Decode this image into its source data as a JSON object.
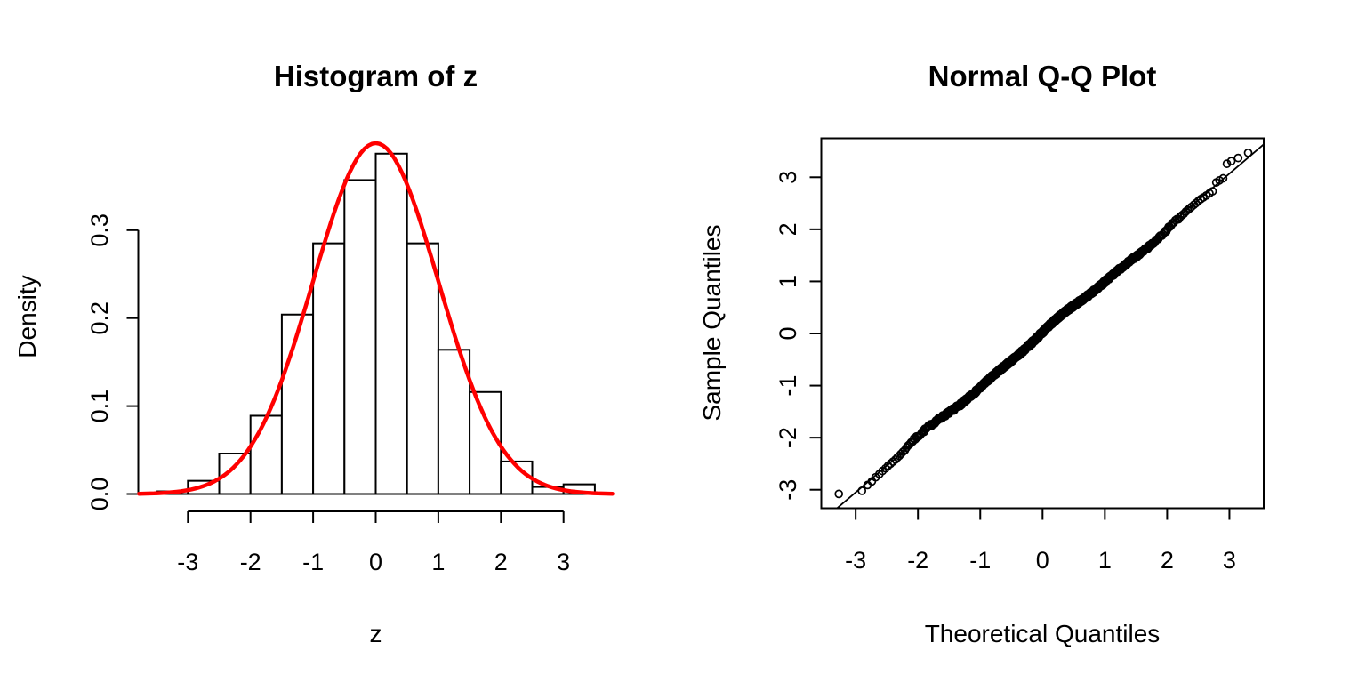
{
  "page": {
    "background": "#ffffff",
    "text_color": "#000000"
  },
  "chart_data": [
    {
      "id": "histogram-of-z",
      "type": "bar",
      "subtype": "histogram-with-density-curve",
      "title": "Histogram of z",
      "xlabel": "z",
      "ylabel": "Density",
      "x_ticks": [
        -3,
        -2,
        -1,
        0,
        1,
        2,
        3
      ],
      "x_tick_labels": [
        "-3",
        "-2",
        "-1",
        "0",
        "1",
        "2",
        "3"
      ],
      "y_ticks": [
        0,
        0.1,
        0.2,
        0.3
      ],
      "y_tick_labels": [
        "0.0",
        "0.1",
        "0.2",
        "0.3"
      ],
      "xlim": [
        -3.78,
        3.78
      ],
      "ylim": [
        0,
        0.4
      ],
      "grid": false,
      "bin_start": -3.5,
      "bin_width": 0.5,
      "bin_edges": [
        -3.5,
        -3,
        -2.5,
        -2,
        -1.5,
        -1,
        -0.5,
        0,
        0.5,
        1,
        1.5,
        2,
        2.5,
        3,
        3.5
      ],
      "densities": [
        0.003,
        0.015,
        0.046,
        0.089,
        0.204,
        0.285,
        0.357,
        0.387,
        0.285,
        0.164,
        0.116,
        0.037,
        0.008,
        0.011
      ],
      "bar_fill": "#ffffff",
      "bar_stroke": "#000000",
      "overlay_curve": {
        "name": "standard-normal-density",
        "mean": 0,
        "sd": 1,
        "color": "#ff0000",
        "stroke_width": 4.5,
        "x_range": [
          -3.78,
          3.78
        ]
      }
    },
    {
      "id": "normal-qq-plot",
      "type": "scatter",
      "title": "Normal Q-Q Plot",
      "xlabel": "Theoretical Quantiles",
      "ylabel": "Sample Quantiles",
      "x_ticks": [
        -3,
        -2,
        -1,
        0,
        1,
        2,
        3
      ],
      "x_tick_labels": [
        "-3",
        "-2",
        "-1",
        "0",
        "1",
        "2",
        "3"
      ],
      "y_ticks": [
        -3,
        -2,
        -1,
        0,
        1,
        2,
        3
      ],
      "y_tick_labels": [
        "-3",
        "-2",
        "-1",
        "0",
        "1",
        "2",
        "3"
      ],
      "xlim": [
        -3.55,
        3.55
      ],
      "ylim": [
        -3.36,
        3.76
      ],
      "grid": false,
      "n_points": 1000,
      "marker": {
        "shape": "open-circle",
        "radius": 4,
        "color": "#000000",
        "stroke_width": 1.7
      },
      "band_model": {
        "description": "dense sorted normal sample closely following y = x",
        "slope": 1.005,
        "wiggle1": [
          0.035,
          2.6,
          0.8
        ],
        "wiggle2": [
          0.02,
          6.1,
          0
        ],
        "jitter": 0.055,
        "seed": 7,
        "tq_cutoff": 2.2
      },
      "qq_line": {
        "slope": 1.02,
        "intercept": 0.01,
        "color": "#000000",
        "stroke_width": 1.8
      },
      "lower_tail_points": [
        [
          -3.27,
          -3.08
        ],
        [
          -2.9,
          -3.02
        ],
        [
          -2.81,
          -2.91
        ],
        [
          -2.74,
          -2.84
        ],
        [
          -2.68,
          -2.76
        ],
        [
          -2.62,
          -2.7
        ],
        [
          -2.57,
          -2.64
        ],
        [
          -2.52,
          -2.59
        ],
        [
          -2.48,
          -2.54
        ],
        [
          -2.44,
          -2.5
        ],
        [
          -2.4,
          -2.46
        ],
        [
          -2.36,
          -2.42
        ],
        [
          -2.33,
          -2.38
        ],
        [
          -2.3,
          -2.35
        ],
        [
          -2.27,
          -2.31
        ],
        [
          -2.24,
          -2.27
        ],
        [
          -2.21,
          -2.24
        ]
      ],
      "upper_tail_points": [
        [
          2.21,
          2.24
        ],
        [
          2.24,
          2.27
        ],
        [
          2.27,
          2.3
        ],
        [
          2.3,
          2.34
        ],
        [
          2.33,
          2.37
        ],
        [
          2.36,
          2.4
        ],
        [
          2.39,
          2.43
        ],
        [
          2.43,
          2.47
        ],
        [
          2.46,
          2.5
        ],
        [
          2.5,
          2.54
        ],
        [
          2.54,
          2.58
        ],
        [
          2.58,
          2.61
        ],
        [
          2.63,
          2.65
        ],
        [
          2.68,
          2.69
        ],
        [
          2.73,
          2.73
        ],
        [
          2.79,
          2.9
        ],
        [
          2.84,
          2.94
        ],
        [
          2.9,
          2.98
        ],
        [
          2.96,
          3.26
        ],
        [
          3.03,
          3.31
        ],
        [
          3.14,
          3.37
        ],
        [
          3.3,
          3.47
        ]
      ]
    }
  ]
}
